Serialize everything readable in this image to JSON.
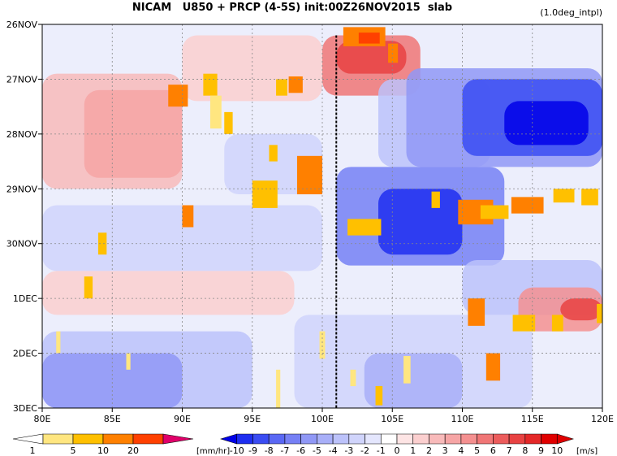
{
  "chart_data": {
    "type": "heatmap",
    "title": "NICAM   U850 + PRCP (4-5S) init:00Z26NOV2015  slab",
    "note": "(1.0deg_intpl)",
    "x_ticks": [
      "80E",
      "85E",
      "90E",
      "95E",
      "100E",
      "105E",
      "110E",
      "115E",
      "120E"
    ],
    "x_values": [
      80,
      85,
      90,
      95,
      100,
      105,
      110,
      115,
      120
    ],
    "y_ticks": [
      "26NOV",
      "27NOV",
      "28NOV",
      "29NOV",
      "30NOV",
      "1DEC",
      "2DEC",
      "3DEC"
    ],
    "y_days": [
      0,
      1,
      2,
      3,
      4,
      5,
      6,
      7
    ],
    "xlim": [
      80,
      120
    ],
    "ylim_days": [
      0,
      7
    ],
    "grid": true,
    "vertical_line_x": 101,
    "u850_regions": [
      {
        "x": [
          80,
          90
        ],
        "days": [
          0.9,
          3.0
        ],
        "value": 3
      },
      {
        "x": [
          83,
          90
        ],
        "days": [
          1.2,
          2.8
        ],
        "value": 4
      },
      {
        "x": [
          90,
          100
        ],
        "days": [
          0.2,
          1.4
        ],
        "value": 2
      },
      {
        "x": [
          100,
          107
        ],
        "days": [
          0.2,
          1.3
        ],
        "value": 6
      },
      {
        "x": [
          101,
          106
        ],
        "days": [
          0.3,
          0.9
        ],
        "value": 8
      },
      {
        "x": [
          93,
          100
        ],
        "days": [
          2.0,
          3.1
        ],
        "value": -2
      },
      {
        "x": [
          80,
          100
        ],
        "days": [
          3.3,
          4.5
        ],
        "value": -2
      },
      {
        "x": [
          80,
          98
        ],
        "days": [
          4.5,
          5.3
        ],
        "value": 2
      },
      {
        "x": [
          80,
          95
        ],
        "days": [
          5.6,
          7.0
        ],
        "value": -3
      },
      {
        "x": [
          80,
          90
        ],
        "days": [
          6.0,
          7.0
        ],
        "value": -5
      },
      {
        "x": [
          104,
          112
        ],
        "days": [
          1.0,
          2.6
        ],
        "value": -3
      },
      {
        "x": [
          106,
          120
        ],
        "days": [
          0.8,
          2.6
        ],
        "value": -5
      },
      {
        "x": [
          110,
          120
        ],
        "days": [
          1.0,
          2.4
        ],
        "value": -8
      },
      {
        "x": [
          113,
          119
        ],
        "days": [
          1.4,
          2.2
        ],
        "value": -10
      },
      {
        "x": [
          101,
          113
        ],
        "days": [
          2.6,
          4.4
        ],
        "value": -6
      },
      {
        "x": [
          104,
          110
        ],
        "days": [
          3.0,
          4.2
        ],
        "value": -9
      },
      {
        "x": [
          110,
          120
        ],
        "days": [
          4.3,
          5.3
        ],
        "value": -3
      },
      {
        "x": [
          114,
          120
        ],
        "days": [
          4.8,
          5.6
        ],
        "value": 5
      },
      {
        "x": [
          117,
          120
        ],
        "days": [
          5.0,
          5.4
        ],
        "value": 8
      },
      {
        "x": [
          98,
          115
        ],
        "days": [
          5.3,
          7.0
        ],
        "value": -2
      },
      {
        "x": [
          103,
          110
        ],
        "days": [
          6.0,
          7.0
        ],
        "value": -4
      }
    ],
    "prcp_cells": [
      {
        "x": 101.5,
        "day": 0.05,
        "w": 3,
        "h": 0.35,
        "value": 12
      },
      {
        "x": 102.6,
        "day": 0.15,
        "w": 1.5,
        "h": 0.2,
        "value": 22
      },
      {
        "x": 104.7,
        "day": 0.35,
        "w": 0.7,
        "h": 0.35,
        "value": 10
      },
      {
        "x": 91.5,
        "day": 0.9,
        "w": 1,
        "h": 0.4,
        "value": 8
      },
      {
        "x": 89.0,
        "day": 1.1,
        "w": 1.4,
        "h": 0.4,
        "value": 14
      },
      {
        "x": 96.7,
        "day": 1.0,
        "w": 0.8,
        "h": 0.3,
        "value": 6
      },
      {
        "x": 97.6,
        "day": 0.95,
        "w": 1,
        "h": 0.3,
        "value": 11
      },
      {
        "x": 92.0,
        "day": 1.3,
        "w": 0.8,
        "h": 0.6,
        "value": 4
      },
      {
        "x": 93.0,
        "day": 1.6,
        "w": 0.6,
        "h": 0.4,
        "value": 8
      },
      {
        "x": 96.2,
        "day": 2.2,
        "w": 0.6,
        "h": 0.3,
        "value": 7
      },
      {
        "x": 98.2,
        "day": 2.4,
        "w": 1.8,
        "h": 0.7,
        "value": 12
      },
      {
        "x": 95.0,
        "day": 2.85,
        "w": 1.8,
        "h": 0.5,
        "value": 6
      },
      {
        "x": 90.0,
        "day": 3.3,
        "w": 0.8,
        "h": 0.4,
        "value": 12
      },
      {
        "x": 84.0,
        "day": 3.8,
        "w": 0.6,
        "h": 0.4,
        "value": 7
      },
      {
        "x": 101.8,
        "day": 3.55,
        "w": 2.4,
        "h": 0.3,
        "value": 6
      },
      {
        "x": 107.8,
        "day": 3.05,
        "w": 0.6,
        "h": 0.3,
        "value": 5
      },
      {
        "x": 109.7,
        "day": 3.2,
        "w": 2.5,
        "h": 0.45,
        "value": 11
      },
      {
        "x": 111.3,
        "day": 3.3,
        "w": 2.0,
        "h": 0.25,
        "value": 6
      },
      {
        "x": 113.5,
        "day": 3.15,
        "w": 2.3,
        "h": 0.3,
        "value": 10
      },
      {
        "x": 116.5,
        "day": 3.0,
        "w": 1.5,
        "h": 0.25,
        "value": 5
      },
      {
        "x": 118.5,
        "day": 3.0,
        "w": 1.2,
        "h": 0.3,
        "value": 5
      },
      {
        "x": 83.0,
        "day": 4.6,
        "w": 0.6,
        "h": 0.4,
        "value": 6
      },
      {
        "x": 110.4,
        "day": 5.0,
        "w": 1.2,
        "h": 0.5,
        "value": 11
      },
      {
        "x": 119.6,
        "day": 5.1,
        "w": 0.4,
        "h": 0.35,
        "value": 9
      },
      {
        "x": 113.6,
        "day": 5.3,
        "w": 1.6,
        "h": 0.3,
        "value": 5
      },
      {
        "x": 116.4,
        "day": 5.3,
        "w": 0.8,
        "h": 0.3,
        "value": 6
      },
      {
        "x": 111.7,
        "day": 6.0,
        "w": 1.0,
        "h": 0.5,
        "value": 11
      },
      {
        "x": 105.8,
        "day": 6.05,
        "w": 0.5,
        "h": 0.5,
        "value": 4
      },
      {
        "x": 102.0,
        "day": 6.3,
        "w": 0.4,
        "h": 0.3,
        "value": 3
      },
      {
        "x": 103.8,
        "day": 6.6,
        "w": 0.5,
        "h": 0.35,
        "value": 5
      },
      {
        "x": 96.7,
        "day": 6.3,
        "w": 0.3,
        "h": 0.7,
        "value": 2
      },
      {
        "x": 99.8,
        "day": 5.6,
        "w": 0.4,
        "h": 0.5,
        "value": 3
      },
      {
        "x": 86.0,
        "day": 6.0,
        "w": 0.3,
        "h": 0.3,
        "value": 2
      },
      {
        "x": 81.0,
        "day": 5.6,
        "w": 0.3,
        "h": 0.4,
        "value": 2
      }
    ],
    "prcp_legend": {
      "labels": [
        "1",
        "5",
        "10",
        "20"
      ],
      "unit": "[mm/hr]",
      "colors": [
        "#ffffff",
        "#ffe680",
        "#ffc000",
        "#ff8000",
        "#ff4000",
        "#e0006a"
      ]
    },
    "u_legend": {
      "labels": [
        "-10",
        "-9",
        "-8",
        "-7",
        "-6",
        "-5",
        "-4",
        "-3",
        "-2",
        "-1",
        "0",
        "1",
        "2",
        "3",
        "4",
        "5",
        "6",
        "7",
        "8",
        "9",
        "10"
      ],
      "unit": "[m/s]",
      "colors": [
        "#0000e8",
        "#1e2ef0",
        "#3a4cf2",
        "#5a68f4",
        "#7680f5",
        "#9098f6",
        "#a8aff8",
        "#bcc2fa",
        "#d0d4fb",
        "#e4e6fd",
        "#ffffff",
        "#fde4e4",
        "#fbcfcf",
        "#f8baba",
        "#f6a5a5",
        "#f49090",
        "#f07676",
        "#ec5c5c",
        "#e84242",
        "#e42828",
        "#e00000"
      ]
    }
  }
}
